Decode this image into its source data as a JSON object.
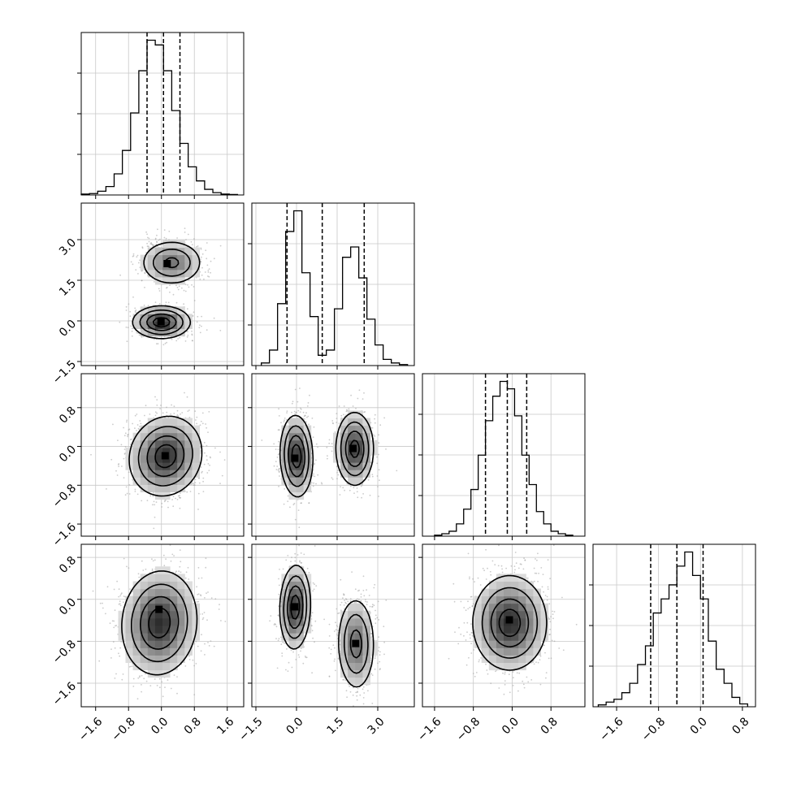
{
  "chart_data": {
    "type": "corner",
    "dimensions": 4,
    "grid": true,
    "colors": {
      "frame": "#000000",
      "grid": "#c8c8c8",
      "hist": "#000000",
      "points": "#a0a0a0"
    },
    "tick_labels": {
      "x": [
        [
          "-1.6",
          "-0.8",
          "0.0",
          "0.8",
          "1.6"
        ],
        [
          "-1.5",
          "0.0",
          "1.5",
          "3.0"
        ],
        [
          "-1.6",
          "-0.8",
          "0.0",
          "0.8"
        ],
        [
          "-1.6",
          "-0.8",
          "0.0",
          "0.8"
        ]
      ],
      "y": [
        [],
        [
          "-1.5",
          "0.0",
          "1.5",
          "3.0"
        ],
        [
          "-1.6",
          "-0.8",
          "0.0",
          "0.8"
        ],
        [
          "-1.6",
          "-0.8",
          "0.0",
          "0.8"
        ]
      ]
    },
    "ranges": [
      [
        -1.95,
        2.0
      ],
      [
        -1.65,
        4.35
      ],
      [
        -1.85,
        1.5
      ],
      [
        -2.05,
        1.05
      ]
    ],
    "histograms": [
      {
        "dim": 0,
        "edges": [
          -1.95,
          -1.75,
          -1.55,
          -1.35,
          -1.15,
          -0.95,
          -0.75,
          -0.55,
          -0.35,
          -0.15,
          0.05,
          0.25,
          0.45,
          0.65,
          0.85,
          1.05,
          1.25,
          1.45,
          1.65,
          1.85
        ],
        "counts": [
          2,
          3,
          8,
          18,
          45,
          95,
          175,
          265,
          330,
          320,
          265,
          180,
          110,
          60,
          30,
          12,
          5,
          2,
          1
        ],
        "quantiles": [
          -0.35,
          0.05,
          0.45
        ]
      },
      {
        "dim": 1,
        "edges": [
          -1.3,
          -1.0,
          -0.7,
          -0.4,
          -0.1,
          0.2,
          0.5,
          0.8,
          1.1,
          1.4,
          1.7,
          2.0,
          2.3,
          2.6,
          2.9,
          3.2,
          3.5,
          3.8,
          4.1
        ],
        "counts": [
          5,
          30,
          120,
          260,
          300,
          180,
          95,
          20,
          30,
          110,
          210,
          230,
          170,
          90,
          40,
          12,
          5,
          2
        ],
        "quantiles": [
          -0.35,
          0.95,
          2.5
        ]
      },
      {
        "dim": 2,
        "edges": [
          -1.6,
          -1.45,
          -1.3,
          -1.15,
          -1.0,
          -0.85,
          -0.7,
          -0.55,
          -0.4,
          -0.25,
          -0.1,
          0.05,
          0.2,
          0.35,
          0.5,
          0.65,
          0.8,
          0.95,
          1.1,
          1.25
        ],
        "counts": [
          2,
          5,
          10,
          25,
          55,
          95,
          165,
          235,
          285,
          315,
          300,
          245,
          165,
          105,
          50,
          25,
          10,
          5,
          2
        ],
        "quantiles": [
          -0.55,
          -0.1,
          0.3
        ]
      },
      {
        "dim": 3,
        "edges": [
          -1.95,
          -1.8,
          -1.65,
          -1.5,
          -1.35,
          -1.2,
          -1.05,
          -0.9,
          -0.75,
          -0.6,
          -0.45,
          -0.3,
          -0.15,
          0.0,
          0.15,
          0.3,
          0.45,
          0.6,
          0.75,
          0.9
        ],
        "counts": [
          2,
          5,
          8,
          15,
          25,
          45,
          65,
          100,
          115,
          130,
          150,
          165,
          140,
          115,
          70,
          40,
          25,
          10,
          3
        ],
        "quantiles": [
          -0.95,
          -0.45,
          0.05
        ]
      }
    ],
    "pairs": [
      {
        "xdim": 0,
        "ydim": 1,
        "modes": [
          {
            "cx": 0.0,
            "cy": -0.05,
            "sx": 0.35,
            "sy": 0.3,
            "rot": 0,
            "weight": 0.5,
            "peak": [
              0.0,
              -0.05
            ]
          },
          {
            "cx": 0.25,
            "cy": 2.15,
            "sx": 0.38,
            "sy": 0.42,
            "rot": 0,
            "weight": 0.5,
            "peak": [
              0.15,
              2.1
            ]
          }
        ]
      },
      {
        "xdim": 0,
        "ydim": 2,
        "modes": [
          {
            "cx": 0.1,
            "cy": -0.2,
            "sx": 0.45,
            "sy": 0.4,
            "rot": 0.45,
            "weight": 1.0,
            "peak": [
              0.1,
              -0.2
            ]
          }
        ]
      },
      {
        "xdim": 1,
        "ydim": 2,
        "modes": [
          {
            "cx": 0.0,
            "cy": -0.2,
            "sx": 0.3,
            "sy": 0.42,
            "rot": 0.1,
            "weight": 0.5,
            "peak": [
              -0.05,
              -0.25
            ]
          },
          {
            "cx": 2.15,
            "cy": -0.05,
            "sx": 0.35,
            "sy": 0.38,
            "rot": 0.05,
            "weight": 0.5,
            "peak": [
              2.1,
              -0.05
            ]
          }
        ]
      },
      {
        "xdim": 0,
        "ydim": 3,
        "modes": [
          {
            "cx": -0.05,
            "cy": -0.45,
            "sx": 0.45,
            "sy": 0.5,
            "rot": -0.35,
            "weight": 1.0,
            "peak": [
              -0.05,
              -0.2
            ]
          }
        ]
      },
      {
        "xdim": 1,
        "ydim": 3,
        "modes": [
          {
            "cx": -0.05,
            "cy": -0.15,
            "sx": 0.28,
            "sy": 0.4,
            "rot": -0.1,
            "weight": 0.5,
            "peak": [
              -0.05,
              -0.15
            ]
          },
          {
            "cx": 2.2,
            "cy": -0.85,
            "sx": 0.35,
            "sy": 0.45,
            "rot": 0.05,
            "weight": 0.5,
            "peak": [
              2.2,
              -0.85
            ]
          }
        ]
      },
      {
        "xdim": 2,
        "ydim": 3,
        "modes": [
          {
            "cx": -0.05,
            "cy": -0.45,
            "sx": 0.38,
            "sy": 0.45,
            "rot": 0.0,
            "weight": 1.0,
            "peak": [
              -0.05,
              -0.4
            ]
          }
        ]
      }
    ]
  }
}
